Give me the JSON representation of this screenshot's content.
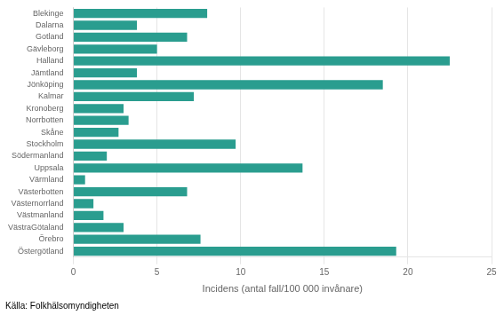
{
  "chart_data": {
    "type": "bar",
    "orientation": "horizontal",
    "categories": [
      "Blekinge",
      "Dalarna",
      "Gotland",
      "Gävleborg",
      "Halland",
      "Jämtland",
      "Jönköping",
      "Kalmar",
      "Kronoberg",
      "Norrbotten",
      "Skåne",
      "Stockholm",
      "Södermanland",
      "Uppsala",
      "Värmland",
      "Västerbotten",
      "Västernorrland",
      "Västmanland",
      "VästraGötaland",
      "Örebro",
      "Östergötland"
    ],
    "values": [
      8.0,
      3.8,
      6.8,
      5.0,
      22.5,
      3.8,
      18.5,
      7.2,
      3.0,
      3.3,
      2.7,
      9.7,
      2.0,
      13.7,
      0.7,
      6.8,
      1.2,
      1.8,
      3.0,
      7.6,
      19.3
    ],
    "color": "#2a9d8f",
    "xlabel": "Incidens (antal fall/100 000 invånare)",
    "xlim": [
      0,
      25
    ],
    "xticks": [
      0,
      5,
      10,
      15,
      20,
      25
    ],
    "grid": true,
    "annotations": [
      "Källa: Folkhälsomyndigheten"
    ]
  }
}
